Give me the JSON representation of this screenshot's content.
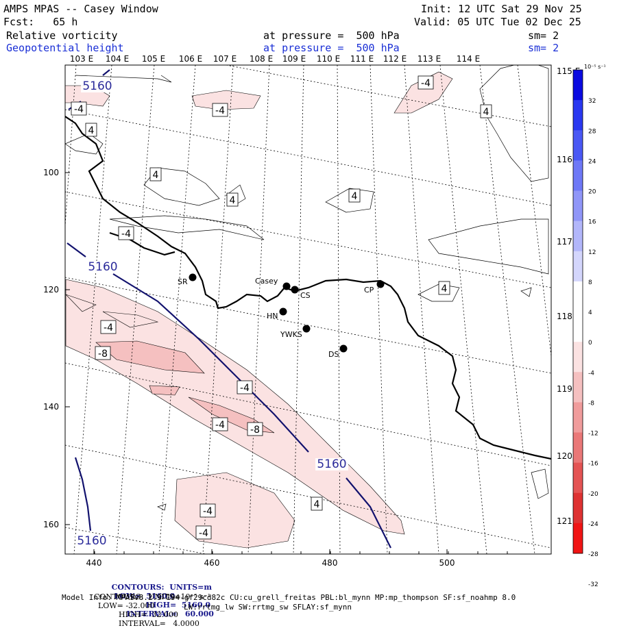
{
  "header": {
    "model_window": "AMPS MPAS -- Casey Window",
    "init": "Init: 12 UTC Sat 29 Nov 25",
    "forecast": "Fcst:   65 h",
    "valid": "Valid: 05 UTC Tue 02 Dec 25",
    "field1": {
      "name": "Relative vorticity",
      "level": "at pressure =  500 hPa",
      "sm": "sm= 2"
    },
    "field2": {
      "name": "Geopotential height",
      "level": "at pressure =  500 hPa",
      "sm": "sm= 2"
    }
  },
  "map": {
    "top_lon_labels": [
      "103 E",
      "104 E",
      "105 E",
      "106 E",
      "107 E",
      "108 E",
      "109 E",
      "110 E",
      "111 E",
      "112 E",
      "113 E",
      "114 E"
    ],
    "right_lon_labels": [
      "115 E",
      "116 E",
      "117 E",
      "118 E",
      "119 E",
      "120 E",
      "121 E"
    ],
    "x_ticks": [
      "440",
      "460",
      "480",
      "500"
    ],
    "y_ticks": [
      "100",
      "120",
      "140",
      "160"
    ],
    "stations": [
      {
        "id": "SR"
      },
      {
        "id": "Casey"
      },
      {
        "id": "CS"
      },
      {
        "id": "CP"
      },
      {
        "id": "HN"
      },
      {
        "id": "YWKS"
      },
      {
        "id": "DS"
      }
    ],
    "height_labels": [
      "5160",
      "5160",
      "5160",
      "5160"
    ],
    "vort_labels": [
      "-4",
      "-4",
      "4",
      "4",
      "-4",
      "4",
      "4",
      "4",
      "-4",
      "-8",
      "-4",
      "-4",
      "-8",
      "-4",
      "-4",
      "-4",
      "4",
      "4"
    ]
  },
  "colorbar": {
    "unit": "10⁻⁵ s⁻¹",
    "ticks": [
      "32",
      "28",
      "24",
      "20",
      "16",
      "12",
      "8",
      "4",
      "0",
      "-4",
      "-8",
      "-12",
      "-16",
      "-20",
      "-24",
      "-28",
      "-32"
    ],
    "colors": [
      "#0a0ae0",
      "#2a38f0",
      "#4a58f4",
      "#6e78f6",
      "#9096f8",
      "#b2b6fa",
      "#d4d6fc",
      "#ffffff",
      "#ffffff",
      "#fbe2e2",
      "#f5c0c0",
      "#f09c9c",
      "#ea7878",
      "#e45454",
      "#de3232",
      "#f01414"
    ]
  },
  "footer": {
    "line1": {
      "label": "CONTOURS:  UNITS=m",
      "low": "LOW=  5160.0",
      "high": "HIGH=  5160.0",
      "interval": "INTERVAL=   60.000"
    },
    "line2": {
      "label": "CONTOURS:  UNITS=10⁻⁵ s⁻¹",
      "low": "LOW= -32.000",
      "high": "HIGH=  32.000",
      "interval": "INTERVAL=   4.0000"
    },
    "model_info": "Model Info: MPASv8.2.3-194-gf29cd82c CU:cu_grell_freitas PBL:bl_mynn MP:mp_thompson SF:sf_noahmp 8.0",
    "model_info2": "LW:rrtmg_lw SW:rrtmg_sw SFLAY:sf_mynn"
  }
}
